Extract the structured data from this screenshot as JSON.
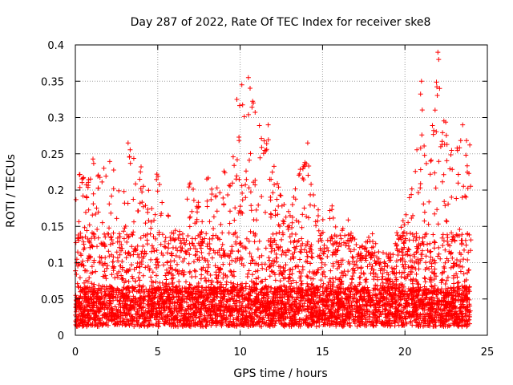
{
  "chart_data": {
    "type": "scatter",
    "title": "Day 287 of 2022, Rate Of TEC Index for receiver ske8",
    "xlabel": "GPS time / hours",
    "ylabel": "ROTI / TECUs",
    "xlim": [
      0,
      25
    ],
    "ylim": [
      0,
      0.4
    ],
    "xticks": [
      0,
      5,
      10,
      15,
      20,
      25
    ],
    "yticks": [
      0,
      0.05,
      0.1,
      0.15,
      0.2,
      0.25,
      0.3,
      0.35,
      0.4
    ],
    "xtick_labels": [
      "0",
      "5",
      "10",
      "15",
      "20",
      "25"
    ],
    "ytick_labels": [
      "0",
      "0.05",
      "0.1",
      "0.15",
      "0.2",
      "0.25",
      "0.3",
      "0.35",
      "0.4"
    ],
    "grid": true,
    "marker": "+",
    "color": "#ff0000",
    "x_data_range": [
      0,
      24
    ],
    "series": [
      {
        "envelope": [
          [
            0.0,
            0.2
          ],
          [
            0.3,
            0.25
          ],
          [
            0.6,
            0.2
          ],
          [
            1.0,
            0.25
          ],
          [
            1.5,
            0.22
          ],
          [
            2.0,
            0.26
          ],
          [
            2.5,
            0.22
          ],
          [
            3.0,
            0.2
          ],
          [
            3.3,
            0.26
          ],
          [
            3.8,
            0.24
          ],
          [
            4.3,
            0.22
          ],
          [
            4.8,
            0.25
          ],
          [
            5.3,
            0.19
          ],
          [
            6.0,
            0.15
          ],
          [
            6.5,
            0.14
          ],
          [
            7.0,
            0.23
          ],
          [
            7.5,
            0.18
          ],
          [
            8.0,
            0.22
          ],
          [
            8.5,
            0.21
          ],
          [
            9.0,
            0.23
          ],
          [
            9.5,
            0.27
          ],
          [
            10.0,
            0.34
          ],
          [
            10.5,
            0.35
          ],
          [
            11.0,
            0.32
          ],
          [
            11.5,
            0.29
          ],
          [
            12.0,
            0.25
          ],
          [
            12.5,
            0.2
          ],
          [
            13.0,
            0.18
          ],
          [
            13.5,
            0.22
          ],
          [
            14.0,
            0.27
          ],
          [
            14.5,
            0.19
          ],
          [
            15.0,
            0.16
          ],
          [
            15.5,
            0.19
          ],
          [
            16.0,
            0.14
          ],
          [
            16.5,
            0.17
          ],
          [
            17.0,
            0.12
          ],
          [
            17.5,
            0.11
          ],
          [
            18.0,
            0.15
          ],
          [
            18.5,
            0.11
          ],
          [
            19.0,
            0.1
          ],
          [
            19.5,
            0.13
          ],
          [
            20.0,
            0.17
          ],
          [
            20.5,
            0.21
          ],
          [
            21.0,
            0.35
          ],
          [
            21.5,
            0.25
          ],
          [
            22.0,
            0.39
          ],
          [
            22.5,
            0.3
          ],
          [
            23.0,
            0.25
          ],
          [
            23.5,
            0.29
          ],
          [
            24.0,
            0.27
          ]
        ]
      }
    ]
  }
}
